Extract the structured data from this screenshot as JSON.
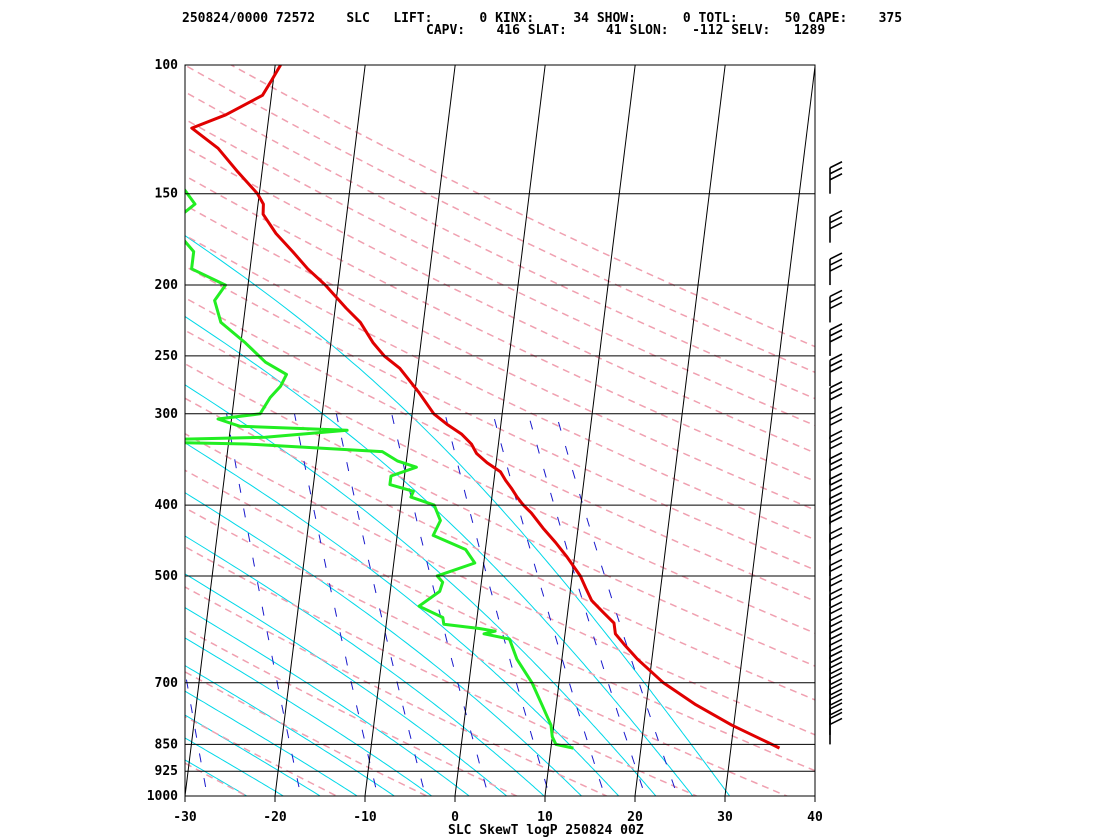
{
  "header": {
    "line1": "250824/0000 72572    SLC   LIFT:      0 KINX:     34 SHOW:      0 TOTL:      50 CAPE:    375",
    "line2": "CAPV:    416 SLAT:     41 SLON:   -112 SELV:   1289"
  },
  "footer_label": "SLC SkewT logP 250824 00Z",
  "colors": {
    "temperature": "#e00000",
    "dewpoint": "#22ee22",
    "isotherm": "#000000",
    "isobar": "#000000",
    "dry_adiabat": "#f0a0b0",
    "moist_adiabat": "#00d8e8",
    "mixing_ratio": "#1a1acc",
    "wind_barb": "#000000"
  },
  "chart_data": {
    "type": "line",
    "title": "SLC SkewT logP 250824 00Z",
    "xlim": [
      -30,
      40
    ],
    "ylim": [
      1000,
      100
    ],
    "y_scale": "log",
    "x_ticks": [
      -30,
      -20,
      -10,
      0,
      10,
      20,
      30,
      40
    ],
    "y_ticks": [
      100,
      150,
      200,
      250,
      300,
      400,
      500,
      700,
      850,
      925,
      1000
    ],
    "series": [
      {
        "key": "temperature",
        "points": [
          [
            860,
            35.4
          ],
          [
            850,
            34.5
          ],
          [
            800,
            29.8
          ],
          [
            750,
            25.5
          ],
          [
            700,
            21.6
          ],
          [
            650,
            18.4
          ],
          [
            620,
            16.7
          ],
          [
            600,
            15.6
          ],
          [
            580,
            15.3
          ],
          [
            560,
            13.9
          ],
          [
            540,
            12.5
          ],
          [
            520,
            11.7
          ],
          [
            500,
            10.9
          ],
          [
            470,
            9.1
          ],
          [
            450,
            7.7
          ],
          [
            430,
            6.1
          ],
          [
            410,
            4.6
          ],
          [
            400,
            3.6
          ],
          [
            390,
            2.8
          ],
          [
            380,
            2.1
          ],
          [
            370,
            1.3
          ],
          [
            360,
            0.6
          ],
          [
            350,
            -1.0
          ],
          [
            340,
            -2.3
          ],
          [
            330,
            -3.0
          ],
          [
            320,
            -4.2
          ],
          [
            310,
            -6.0
          ],
          [
            300,
            -7.6
          ],
          [
            280,
            -9.6
          ],
          [
            260,
            -12.0
          ],
          [
            250,
            -13.9
          ],
          [
            240,
            -15.3
          ],
          [
            225,
            -17.0
          ],
          [
            215,
            -18.8
          ],
          [
            200,
            -21.4
          ],
          [
            190,
            -23.6
          ],
          [
            180,
            -25.5
          ],
          [
            170,
            -27.6
          ],
          [
            160,
            -29.3
          ],
          [
            155,
            -29.4
          ],
          [
            150,
            -30.2
          ],
          [
            140,
            -32.7
          ],
          [
            130,
            -35.2
          ],
          [
            122,
            -38.4
          ],
          [
            117,
            -34.8
          ],
          [
            110,
            -31.0
          ],
          [
            105,
            -30.2
          ],
          [
            100,
            -29.4
          ]
        ]
      },
      {
        "key": "dewpoint",
        "points": [
          [
            860,
            12.5
          ],
          [
            850,
            10.5
          ],
          [
            830,
            10.0
          ],
          [
            800,
            9.7
          ],
          [
            750,
            8.4
          ],
          [
            700,
            7.0
          ],
          [
            650,
            5.0
          ],
          [
            610,
            3.9
          ],
          [
            600,
            1.0
          ],
          [
            595,
            2.2
          ],
          [
            590,
            0.4
          ],
          [
            582,
            -3.6
          ],
          [
            570,
            -3.8
          ],
          [
            550,
            -6.6
          ],
          [
            525,
            -4.5
          ],
          [
            510,
            -4.3
          ],
          [
            500,
            -5.0
          ],
          [
            480,
            -1.0
          ],
          [
            460,
            -2.2
          ],
          [
            440,
            -6.0
          ],
          [
            420,
            -5.4
          ],
          [
            400,
            -6.3
          ],
          [
            390,
            -9.0
          ],
          [
            383,
            -8.8
          ],
          [
            375,
            -11.5
          ],
          [
            365,
            -11.5
          ],
          [
            355,
            -8.8
          ],
          [
            348,
            -11.0
          ],
          [
            338,
            -12.8
          ],
          [
            330,
            -28.0
          ],
          [
            327,
            -44.0
          ],
          [
            323,
            -26.0
          ],
          [
            316,
            -17.0
          ],
          [
            312,
            -29.0
          ],
          [
            305,
            -31.5
          ],
          [
            300,
            -26.9
          ],
          [
            285,
            -26.0
          ],
          [
            275,
            -25.0
          ],
          [
            265,
            -24.5
          ],
          [
            255,
            -27.0
          ],
          [
            240,
            -29.5
          ],
          [
            225,
            -32.5
          ],
          [
            210,
            -33.5
          ],
          [
            200,
            -32.5
          ],
          [
            190,
            -36.5
          ],
          [
            180,
            -36.5
          ],
          [
            165,
            -39.5
          ],
          [
            155,
            -37.0
          ],
          [
            145,
            -39.0
          ],
          [
            130,
            -40.0
          ],
          [
            120,
            -40.4
          ],
          [
            112,
            -40.0
          ],
          [
            106,
            -42.0
          ],
          [
            102,
            -42.0
          ],
          [
            100,
            -44.0
          ]
        ]
      }
    ]
  }
}
